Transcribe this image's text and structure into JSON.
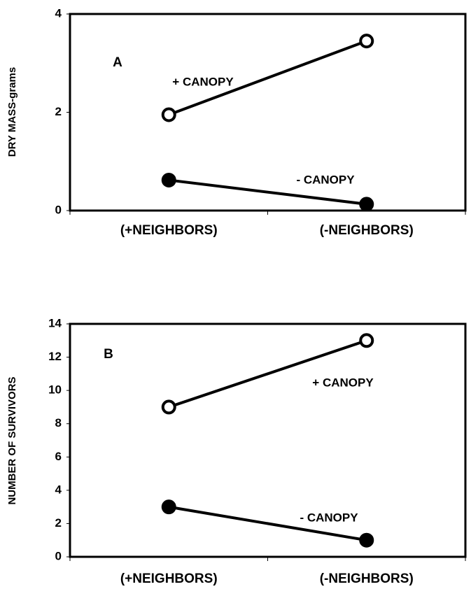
{
  "chart_data": [
    {
      "type": "line",
      "panel_label": "A",
      "y_label": "DRY MASS-grams",
      "categories": [
        "(+NEIGHBORS)",
        "(-NEIGHBORS)"
      ],
      "series": [
        {
          "name": "+ CANOPY",
          "color": "#000000",
          "marker": "open",
          "values": [
            1.95,
            3.45
          ]
        },
        {
          "name": "- CANOPY",
          "color": "#000000",
          "marker": "filled",
          "values": [
            0.62,
            0.13
          ]
        }
      ],
      "ylim": [
        0,
        4
      ],
      "yticks": [
        0,
        2,
        4
      ]
    },
    {
      "type": "line",
      "panel_label": "B",
      "y_label": "NUMBER OF SURVIVORS",
      "categories": [
        "(+NEIGHBORS)",
        "(-NEIGHBORS)"
      ],
      "series": [
        {
          "name": "+ CANOPY",
          "color": "#000000",
          "marker": "open",
          "values": [
            9,
            13
          ]
        },
        {
          "name": "- CANOPY",
          "color": "#000000",
          "marker": "filled",
          "values": [
            3,
            1
          ]
        }
      ],
      "ylim": [
        0,
        14
      ],
      "yticks": [
        0,
        2,
        4,
        6,
        8,
        10,
        12,
        14
      ]
    }
  ]
}
